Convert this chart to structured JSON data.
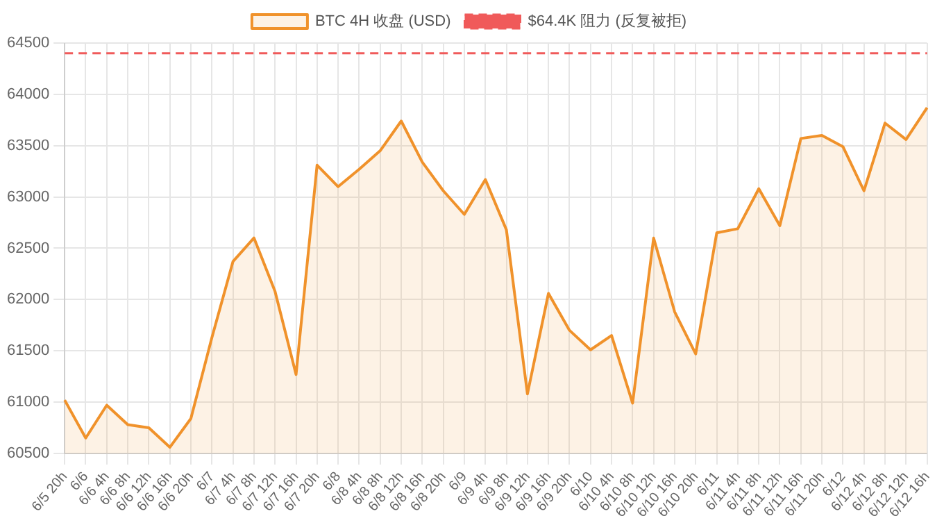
{
  "chart_data": {
    "type": "area",
    "categories": [
      "6/5 20h",
      "6/6",
      "6/6 4h",
      "6/6 8h",
      "6/6 12h",
      "6/6 16h",
      "6/6 20h",
      "6/7",
      "6/7 4h",
      "6/7 8h",
      "6/7 12h",
      "6/7 16h",
      "6/7 20h",
      "6/8",
      "6/8 4h",
      "6/8 8h",
      "6/8 12h",
      "6/8 16h",
      "6/8 20h",
      "6/9",
      "6/9 4h",
      "6/9 8h",
      "6/9 12h",
      "6/9 16h",
      "6/9 20h",
      "6/10",
      "6/10 4h",
      "6/10 8h",
      "6/10 12h",
      "6/10 16h",
      "6/10 20h",
      "6/11",
      "6/11 4h",
      "6/11 8h",
      "6/11 12h",
      "6/11 16h",
      "6/11 20h",
      "6/12",
      "6/12 4h",
      "6/12 8h",
      "6/12 12h",
      "6/12 16h"
    ],
    "series": [
      {
        "name": "BTC 4H 收盘 (USD)",
        "color": "#f0922b",
        "values": [
          61020,
          60650,
          60970,
          60780,
          60750,
          60560,
          60840,
          61630,
          62370,
          62600,
          62080,
          61270,
          63310,
          63100,
          63270,
          63450,
          63740,
          63340,
          63060,
          62830,
          63170,
          62680,
          61080,
          62060,
          61700,
          61510,
          61650,
          60990,
          62600,
          61880,
          61470,
          62650,
          62690,
          63080,
          62720,
          63570,
          63600,
          63490,
          63060,
          63720,
          63560,
          63870
        ]
      },
      {
        "type": "line",
        "name": "$64.4K 阻力 (反复被拒)",
        "color": "#f05a5a",
        "line_style": "dashed",
        "values": [
          64400,
          64400,
          64400,
          64400,
          64400,
          64400,
          64400,
          64400,
          64400,
          64400,
          64400,
          64400,
          64400,
          64400,
          64400,
          64400,
          64400,
          64400,
          64400,
          64400,
          64400,
          64400,
          64400,
          64400,
          64400,
          64400,
          64400,
          64400,
          64400,
          64400,
          64400,
          64400,
          64400,
          64400,
          64400,
          64400,
          64400,
          64400,
          64400,
          64400,
          64400,
          64400
        ]
      }
    ],
    "ylim": [
      60500,
      64500
    ],
    "yticks": [
      60500,
      61000,
      61500,
      62000,
      62500,
      63000,
      63500,
      64000,
      64500
    ],
    "grid": true,
    "legend": "top",
    "marker": "none",
    "line_style": "solid"
  }
}
